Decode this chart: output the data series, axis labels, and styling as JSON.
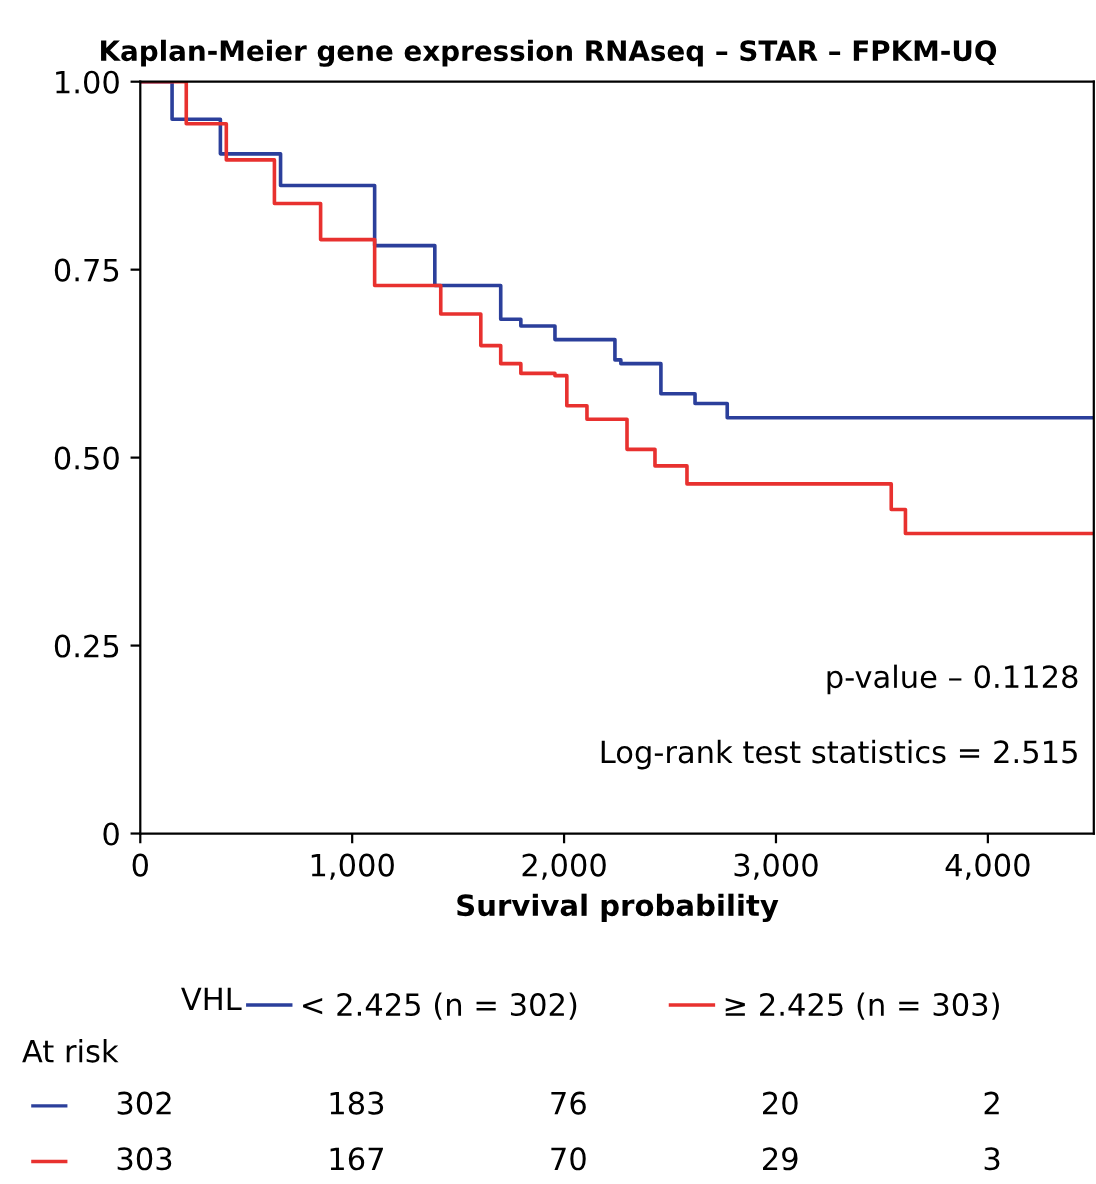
{
  "chart_data": {
    "type": "step",
    "title": "Kaplan-Meier gene expression RNAseq – STAR – FPKM-UQ",
    "xlabel": "Survival probability",
    "legend_title": "VHL",
    "legend": "bottom",
    "series": [
      {
        "name": "< 2.425 (n = 302)",
        "color": "#2b3f9b",
        "x": [
          0,
          150,
          378,
          662,
          1106,
          1390,
          1701,
          1796,
          1957,
          2240,
          2268,
          2457,
          2618,
          2770,
          4500
        ],
        "values": [
          1.0,
          0.95,
          0.904,
          0.862,
          0.782,
          0.729,
          0.684,
          0.675,
          0.657,
          0.63,
          0.625,
          0.585,
          0.572,
          0.553,
          0.553
        ]
      },
      {
        "name": "≥ 2.425 (n = 303)",
        "color": "#e8312f",
        "x": [
          0,
          217,
          406,
          633,
          851,
          1106,
          1418,
          1607,
          1701,
          1796,
          1957,
          2013,
          2108,
          2297,
          2429,
          2580,
          3544,
          3611,
          4500
        ],
        "values": [
          1.0,
          0.944,
          0.896,
          0.838,
          0.79,
          0.729,
          0.691,
          0.649,
          0.625,
          0.612,
          0.609,
          0.569,
          0.551,
          0.511,
          0.489,
          0.465,
          0.431,
          0.399,
          0.399
        ]
      }
    ],
    "xlim": [
      0,
      4500
    ],
    "xticks": [
      {
        "value": 0,
        "label": "0"
      },
      {
        "value": 1000,
        "label": "1,000"
      },
      {
        "value": 2000,
        "label": "2,000"
      },
      {
        "value": 3000,
        "label": "3,000"
      },
      {
        "value": 4000,
        "label": "4,000"
      }
    ],
    "ylim": [
      0,
      1.0
    ],
    "yticks": [
      {
        "value": 0,
        "label": "0"
      },
      {
        "value": 0.25,
        "label": "0.25"
      },
      {
        "value": 0.5,
        "label": "0.50"
      },
      {
        "value": 0.75,
        "label": "0.75"
      },
      {
        "value": 1.0,
        "label": "1.00"
      }
    ],
    "annotations": [
      "p-value – 0.1128",
      "Log-rank test statistics = 2.515",
      "At risk",
      "302",
      "183",
      "76",
      "20",
      "2",
      "303",
      "167",
      "70",
      "29",
      "3"
    ]
  }
}
